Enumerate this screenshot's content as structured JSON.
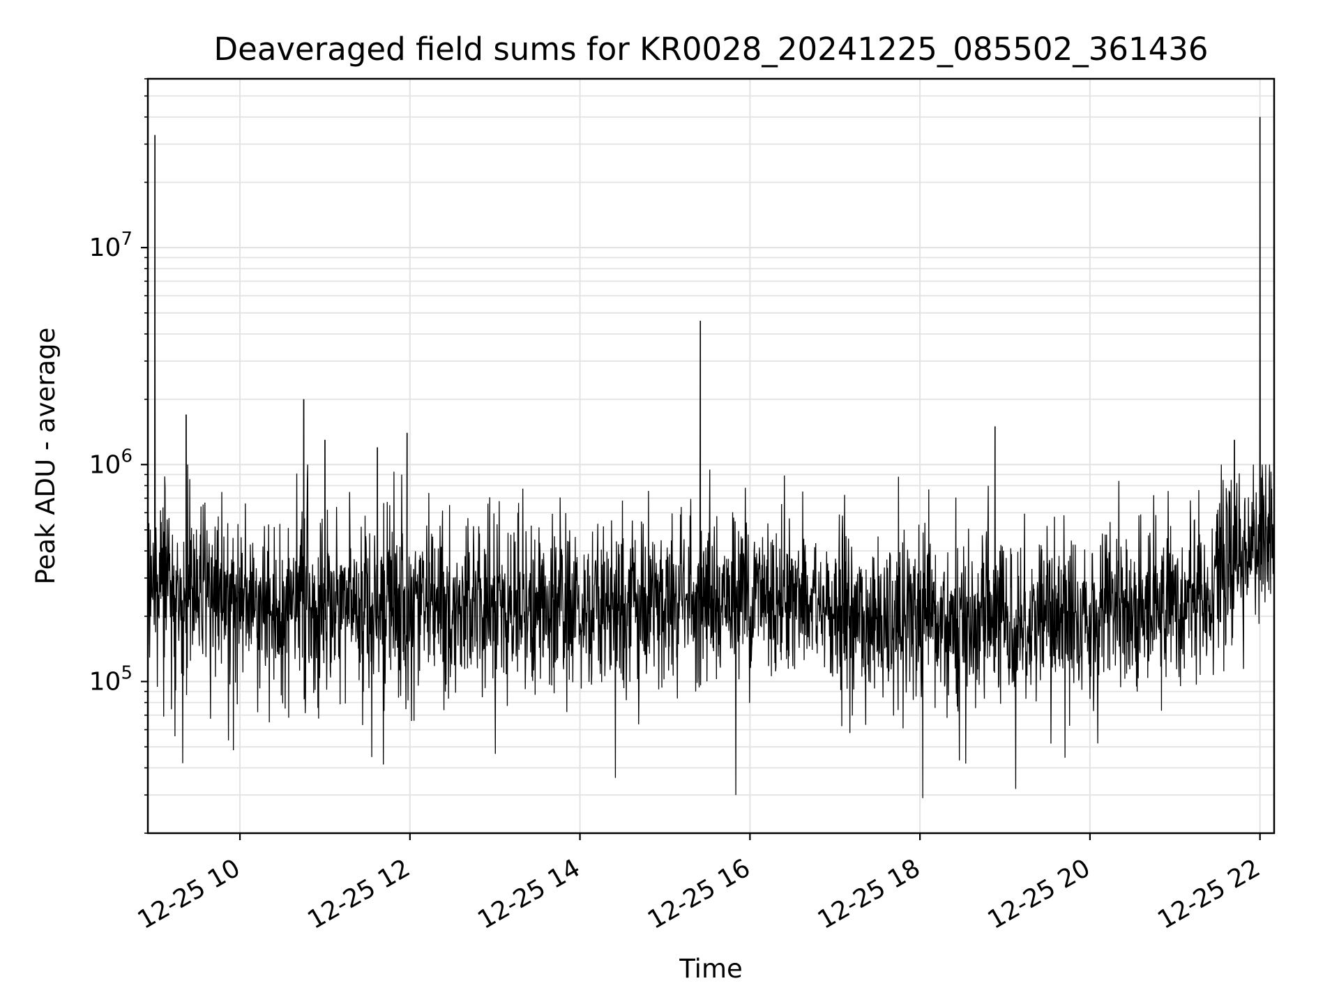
{
  "chart_data": {
    "type": "line",
    "title": "Deaveraged field sums for KR0028_20241225_085502_361436",
    "xlabel": "Time",
    "ylabel": "Peak ADU - average",
    "x_axis": {
      "kind": "datetime",
      "range": [
        "2024-12-25 08:55",
        "2024-12-25 22:10"
      ],
      "ticks": [
        {
          "t": "2024-12-25 10:00",
          "label": "12-25 10"
        },
        {
          "t": "2024-12-25 12:00",
          "label": "12-25 12"
        },
        {
          "t": "2024-12-25 14:00",
          "label": "12-25 14"
        },
        {
          "t": "2024-12-25 16:00",
          "label": "12-25 16"
        },
        {
          "t": "2024-12-25 18:00",
          "label": "12-25 18"
        },
        {
          "t": "2024-12-25 20:00",
          "label": "12-25 20"
        },
        {
          "t": "2024-12-25 22:00",
          "label": "12-25 22"
        }
      ]
    },
    "y_axis": {
      "scale": "log",
      "range": [
        20000,
        60000000
      ],
      "ticks": [
        {
          "value": 100000,
          "base": "10",
          "exp": "5"
        },
        {
          "value": 1000000,
          "base": "10",
          "exp": "6"
        },
        {
          "value": 10000000,
          "base": "10",
          "exp": "7"
        }
      ]
    },
    "grid": true,
    "series_color": "#000000",
    "trend": [
      [
        "2024-12-25 08:55",
        300000
      ],
      [
        "2024-12-25 09:30",
        250000
      ],
      [
        "2024-12-25 10:00",
        220000
      ],
      [
        "2024-12-25 11:00",
        230000
      ],
      [
        "2024-12-25 12:00",
        220000
      ],
      [
        "2024-12-25 13:00",
        230000
      ],
      [
        "2024-12-25 14:00",
        220000
      ],
      [
        "2024-12-25 15:00",
        230000
      ],
      [
        "2024-12-25 16:00",
        250000
      ],
      [
        "2024-12-25 16:30",
        260000
      ],
      [
        "2024-12-25 17:00",
        200000
      ],
      [
        "2024-12-25 18:00",
        180000
      ],
      [
        "2024-12-25 19:00",
        190000
      ],
      [
        "2024-12-25 20:00",
        200000
      ],
      [
        "2024-12-25 21:00",
        230000
      ],
      [
        "2024-12-25 21:30",
        300000
      ],
      [
        "2024-12-25 22:10",
        500000
      ]
    ],
    "spikes": [
      {
        "t": "2024-12-25 09:00",
        "value": 33000000
      },
      {
        "t": "2024-12-25 09:22",
        "value": 1700000
      },
      {
        "t": "2024-12-25 10:45",
        "value": 2000000
      },
      {
        "t": "2024-12-25 11:00",
        "value": 1300000
      },
      {
        "t": "2024-12-25 11:37",
        "value": 1200000
      },
      {
        "t": "2024-12-25 11:58",
        "value": 1400000
      },
      {
        "t": "2024-12-25 15:25",
        "value": 4600000
      },
      {
        "t": "2024-12-25 18:53",
        "value": 1500000
      },
      {
        "t": "2024-12-25 21:42",
        "value": 1300000
      },
      {
        "t": "2024-12-25 22:00",
        "value": 40000000
      }
    ],
    "dips": [
      {
        "t": "2024-12-25 15:50",
        "value": 30000
      },
      {
        "t": "2024-12-25 18:02",
        "value": 29000
      },
      {
        "t": "2024-12-25 14:25",
        "value": 36000
      }
    ]
  }
}
